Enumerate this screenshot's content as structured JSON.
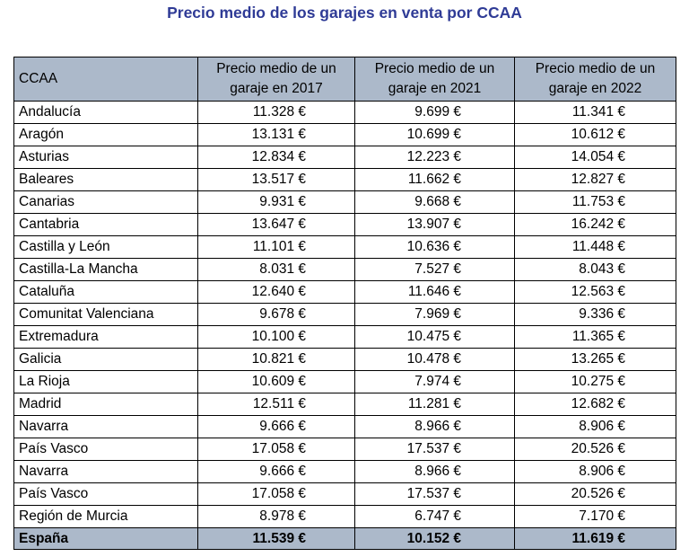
{
  "title": "Precio medio de los garajes en venta por CCAA",
  "table": {
    "headers": [
      "CCAA",
      "Precio medio de un garaje en 2017",
      "Precio medio de un garaje en 2021",
      "Precio medio de un garaje en 2022"
    ],
    "rows": [
      [
        "Andalucía",
        "11.328 €",
        "9.699 €",
        "11.341 €"
      ],
      [
        "Aragón",
        "13.131 €",
        "10.699 €",
        "10.612 €"
      ],
      [
        "Asturias",
        "12.834 €",
        "12.223 €",
        "14.054 €"
      ],
      [
        "Baleares",
        "13.517 €",
        "11.662 €",
        "12.827 €"
      ],
      [
        "Canarias",
        "9.931 €",
        "9.668 €",
        "11.753 €"
      ],
      [
        "Cantabria",
        "13.647 €",
        "13.907 €",
        "16.242 €"
      ],
      [
        "Castilla y León",
        "11.101 €",
        "10.636 €",
        "11.448 €"
      ],
      [
        "Castilla-La Mancha",
        "8.031 €",
        "7.527 €",
        "8.043 €"
      ],
      [
        "Cataluña",
        "12.640 €",
        "11.646 €",
        "12.563 €"
      ],
      [
        "Comunitat Valenciana",
        "9.678 €",
        "7.969 €",
        "9.336 €"
      ],
      [
        "Extremadura",
        "10.100 €",
        "10.475 €",
        "11.365 €"
      ],
      [
        "Galicia",
        "10.821 €",
        "10.478 €",
        "13.265 €"
      ],
      [
        "La Rioja",
        "10.609 €",
        "7.974 €",
        "10.275 €"
      ],
      [
        "Madrid",
        "12.511 €",
        "11.281 €",
        "12.682 €"
      ],
      [
        "Navarra",
        "9.666 €",
        "8.966 €",
        "8.906 €"
      ],
      [
        "País Vasco",
        "17.058 €",
        "17.537 €",
        "20.526 €"
      ],
      [
        "Navarra",
        "9.666 €",
        "8.966 €",
        "8.906 €"
      ],
      [
        "País Vasco",
        "17.058 €",
        "17.537 €",
        "20.526 €"
      ],
      [
        "Región de Murcia",
        "8.978 €",
        "6.747 €",
        "7.170 €"
      ]
    ],
    "total": [
      "España",
      "11.539 €",
      "10.152 €",
      "11.619 €"
    ]
  },
  "colors": {
    "title": "#2f3b96",
    "header_background": "#acb9ca",
    "border": "#000000"
  }
}
